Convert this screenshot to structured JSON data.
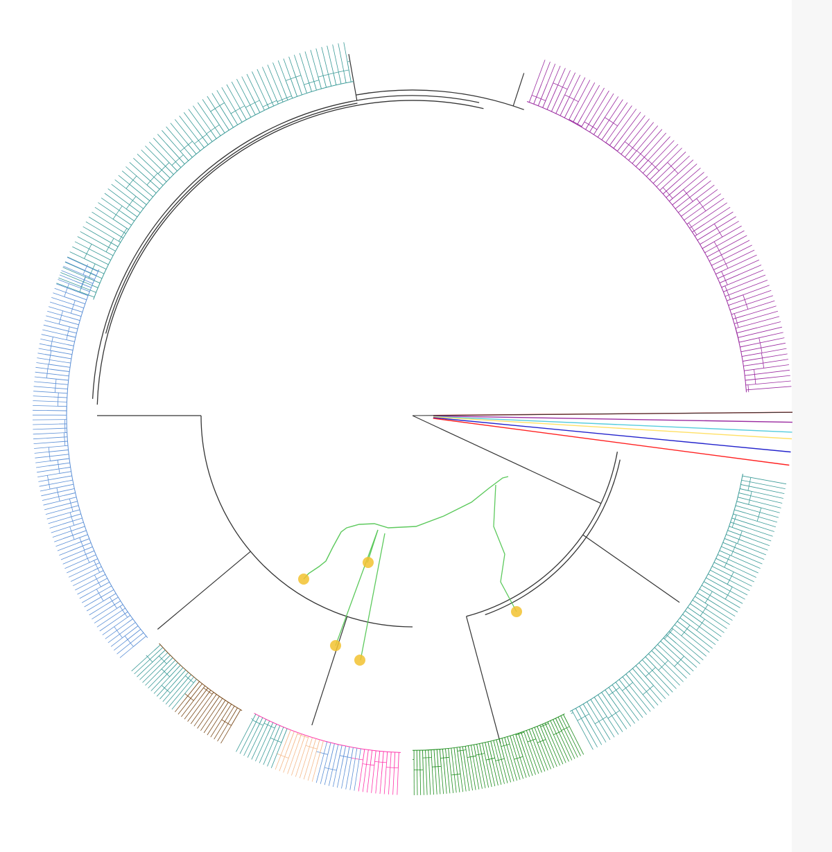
{
  "diagram": {
    "type": "circular-phylogenetic-tree",
    "background": "#ffffff",
    "branch_color": "#333333",
    "highlight_path_color": "#5cc95c",
    "marker_color": "#f2c230",
    "clades": [
      {
        "name": "teal-top",
        "color": "#3a9a97",
        "start_deg": -160,
        "end_deg": -100,
        "tips": 70
      },
      {
        "name": "purple",
        "color": "#9a2aa0",
        "start_deg": -70,
        "end_deg": -4,
        "tips": 80
      },
      {
        "name": "spokes",
        "colors": [
          "#ff2020",
          "#9a2aa0",
          "#55ccdd",
          "#ffe066",
          "#2222cc"
        ],
        "start_deg": -2,
        "end_deg": 9
      },
      {
        "name": "green-teal-right",
        "color": "#3a9a97",
        "start_deg": 10,
        "end_deg": 62,
        "tips": 70
      },
      {
        "name": "green-bottom",
        "color": "#1c8c1c",
        "start_deg": 63,
        "end_deg": 90,
        "tips": 55
      },
      {
        "name": "pink-blue-orange",
        "colors": [
          "#ff33aa",
          "#5b8fd6",
          "#f5b98a",
          "#3a9a97"
        ],
        "start_deg": 92,
        "end_deg": 118,
        "tips": 40
      },
      {
        "name": "brown-teal",
        "colors": [
          "#7a4a1a",
          "#3a9a97"
        ],
        "start_deg": 120,
        "end_deg": 138,
        "tips": 30
      },
      {
        "name": "blue-left",
        "color": "#5b8fd6",
        "start_deg": 140,
        "end_deg": 205,
        "tips": 90
      }
    ]
  }
}
